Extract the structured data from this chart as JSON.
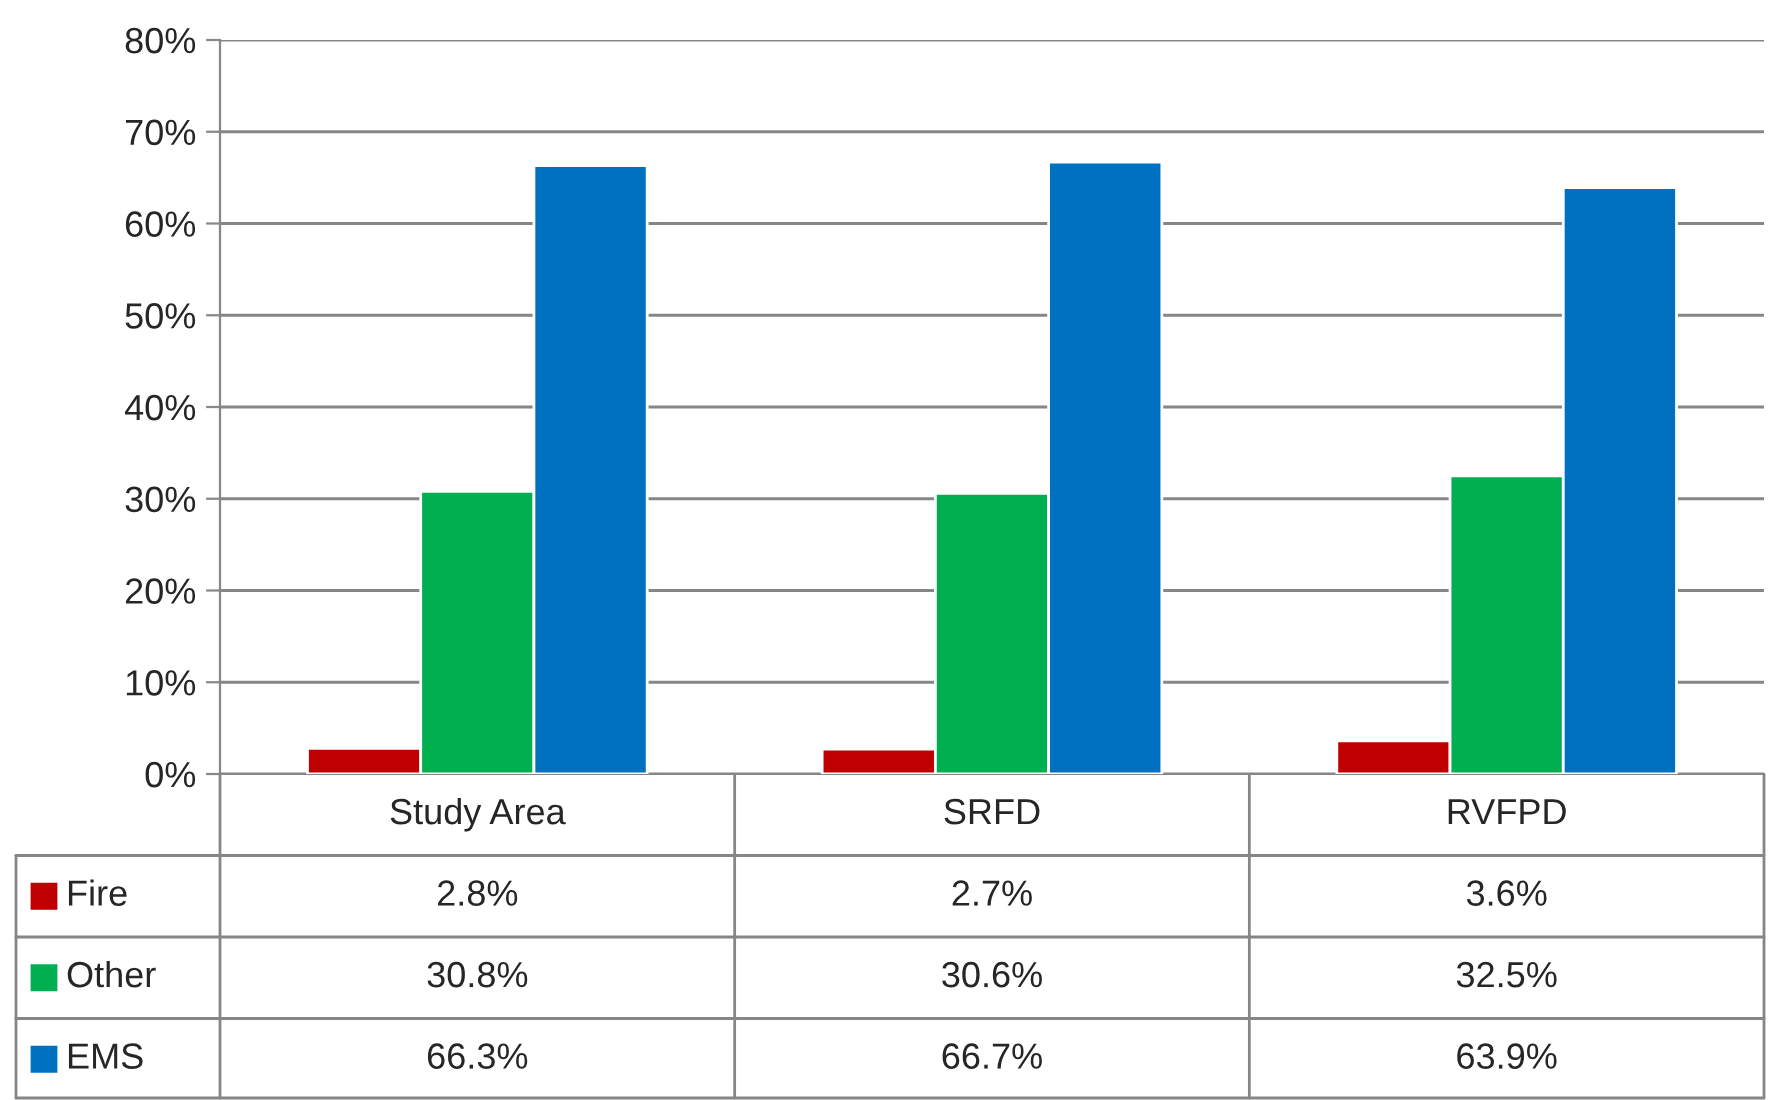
{
  "chart_data": {
    "type": "bar",
    "categories": [
      "Study Area",
      "SRFD",
      "RVFPD"
    ],
    "series": [
      {
        "name": "Fire",
        "color": "#c00000",
        "values": [
          2.8,
          2.7,
          3.6
        ],
        "value_labels": [
          "2.8%",
          "2.7%",
          "3.6%"
        ]
      },
      {
        "name": "Other",
        "color": "#00b050",
        "values": [
          30.8,
          30.6,
          32.5
        ],
        "value_labels": [
          "30.8%",
          "30.6%",
          "32.5%"
        ]
      },
      {
        "name": "EMS",
        "color": "#0070c0",
        "values": [
          66.3,
          66.7,
          63.9
        ],
        "value_labels": [
          "66.3%",
          "66.7%",
          "63.9%"
        ]
      }
    ],
    "ylim": [
      0,
      80
    ],
    "yticks": [
      {
        "value": 0,
        "label": "0%"
      },
      {
        "value": 10,
        "label": "10%"
      },
      {
        "value": 20,
        "label": "20%"
      },
      {
        "value": 30,
        "label": "30%"
      },
      {
        "value": 40,
        "label": "40%"
      },
      {
        "value": 50,
        "label": "50%"
      },
      {
        "value": 60,
        "label": "60%"
      },
      {
        "value": 70,
        "label": "70%"
      },
      {
        "value": 80,
        "label": "80%"
      }
    ],
    "grid": "y",
    "legend": "bottom"
  }
}
